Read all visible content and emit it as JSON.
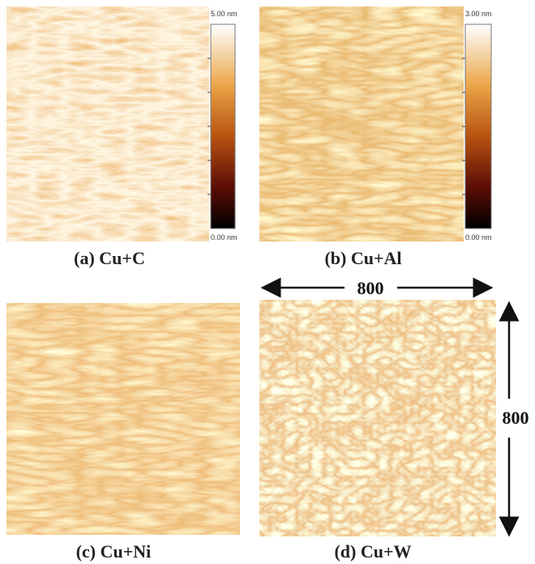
{
  "panels": [
    {
      "caption": "(a) Cu+C",
      "scale_max": "5.00 nm",
      "scale_min": "0.00 nm"
    },
    {
      "caption": "(b) Cu+Al",
      "scale_max": "3.00 nm",
      "scale_min": "0.00 nm"
    },
    {
      "caption": "(c) Cu+Ni"
    },
    {
      "caption": "(d) Cu+W"
    }
  ],
  "dimensions": {
    "width": "800",
    "height": "800"
  }
}
